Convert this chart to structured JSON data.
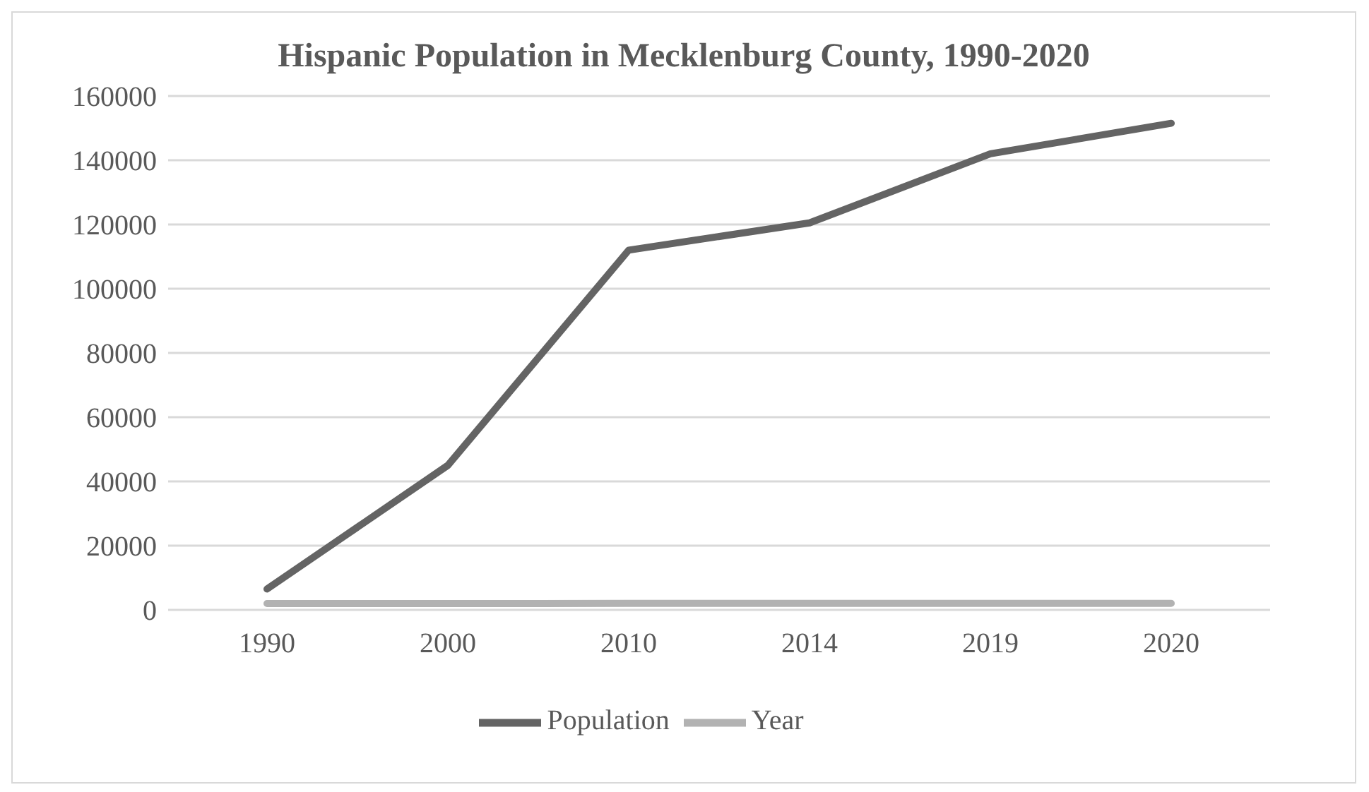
{
  "chart_data": {
    "type": "line",
    "title": "Hispanic Population in Mecklenburg County, 1990-2020",
    "categories": [
      "1990",
      "2000",
      "2010",
      "2014",
      "2019",
      "2020"
    ],
    "series": [
      {
        "name": "Population",
        "color": "#646464",
        "values": [
          6500,
          45000,
          112000,
          120500,
          142000,
          151500
        ]
      },
      {
        "name": "Year",
        "color": "#b2b2b2",
        "values": [
          1990,
          2000,
          2010,
          2014,
          2019,
          2020
        ]
      }
    ],
    "ylim": [
      0,
      160000
    ],
    "yticks": [
      0,
      20000,
      40000,
      60000,
      80000,
      100000,
      120000,
      140000,
      160000
    ],
    "grid": "y",
    "legend": "bottom",
    "marker": "none",
    "line_style": "solid"
  }
}
